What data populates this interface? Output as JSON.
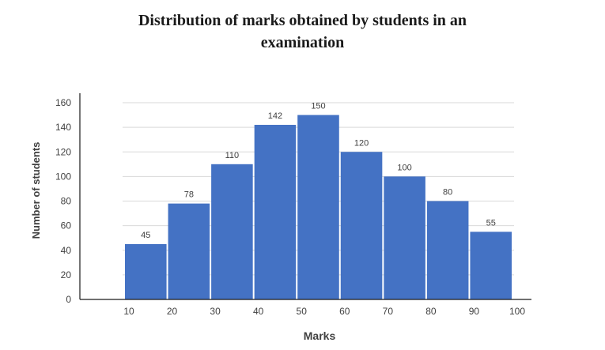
{
  "chart_data": {
    "type": "bar",
    "title": "Distribution of marks obtained by students in an\nexamination",
    "xlabel": "Marks",
    "ylabel": "Number of students",
    "ylim": [
      0,
      160
    ],
    "yticks": [
      "0",
      "20",
      "40",
      "60",
      "80",
      "100",
      "120",
      "140",
      "160"
    ],
    "xticks": [
      "10",
      "20",
      "30",
      "40",
      "50",
      "60",
      "70",
      "80",
      "90",
      "100"
    ],
    "bins": [
      {
        "from": 10,
        "to": 20,
        "value": 45
      },
      {
        "from": 20,
        "to": 30,
        "value": 78
      },
      {
        "from": 30,
        "to": 40,
        "value": 110
      },
      {
        "from": 40,
        "to": 50,
        "value": 142
      },
      {
        "from": 50,
        "to": 60,
        "value": 150
      },
      {
        "from": 60,
        "to": 70,
        "value": 120
      },
      {
        "from": 70,
        "to": 80,
        "value": 100
      },
      {
        "from": 80,
        "to": 90,
        "value": 80
      },
      {
        "from": 90,
        "to": 100,
        "value": 55
      }
    ],
    "grid": true,
    "bar_color": "#4472c4"
  }
}
